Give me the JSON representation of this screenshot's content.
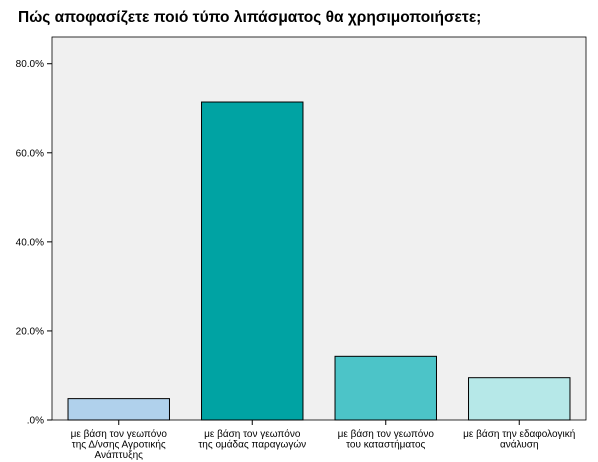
{
  "chart_data": {
    "type": "bar",
    "title": "Πώς αποφασίζετε ποιό τύπο λιπάσματος θα χρησιμοποιήσετε;",
    "xlabel": "",
    "ylabel": "",
    "ylim": [
      0,
      86
    ],
    "yticks": [
      0,
      20,
      40,
      60,
      80
    ],
    "ytick_labels": [
      ".0%",
      "20.0%",
      "40.0%",
      "60.0%",
      "80.0%"
    ],
    "grid": false,
    "categories": [
      [
        "με βάση τον γεωπόνο",
        "της Δ/νσης Αγροτικής",
        "Ανάπτυξης"
      ],
      [
        "με βάση τον γεωπόνο",
        "της ομάδας παραγωγών"
      ],
      [
        "με βάση τον γεωπόνο",
        "του καταστήματος"
      ],
      [
        "με βάση την εδαφολογική",
        "ανάλυση"
      ]
    ],
    "values": [
      4.8,
      71.4,
      14.3,
      9.5
    ],
    "colors": [
      "#b0d1ec",
      "#00a3a3",
      "#4cc4c8",
      "#b6e8e8"
    ],
    "plot_background": "#f0f0f0"
  }
}
